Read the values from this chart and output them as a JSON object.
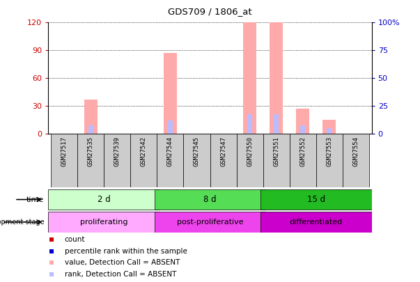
{
  "title": "GDS709 / 1806_at",
  "samples": [
    "GSM27517",
    "GSM27535",
    "GSM27539",
    "GSM27542",
    "GSM27544",
    "GSM27545",
    "GSM27547",
    "GSM27550",
    "GSM27551",
    "GSM27552",
    "GSM27553",
    "GSM27554"
  ],
  "absent_value": [
    0,
    37,
    0,
    0,
    87,
    0,
    0,
    120,
    120,
    27,
    15,
    0
  ],
  "absent_rank_scaled": [
    0,
    9.6,
    0,
    0,
    14.4,
    0,
    0,
    21.6,
    21.6,
    9.6,
    6,
    0
  ],
  "ylim_left": [
    0,
    120
  ],
  "ylim_right": [
    0,
    100
  ],
  "yticks_left": [
    0,
    30,
    60,
    90,
    120
  ],
  "yticks_right": [
    0,
    25,
    50,
    75,
    100
  ],
  "ytick_labels_right": [
    "0",
    "25",
    "50",
    "75",
    "100%"
  ],
  "time_groups": [
    {
      "label": "2 d",
      "start": 0,
      "end": 4
    },
    {
      "label": "8 d",
      "start": 4,
      "end": 8
    },
    {
      "label": "15 d",
      "start": 8,
      "end": 12
    }
  ],
  "time_colors": [
    "#ccffcc",
    "#55dd55",
    "#22bb22"
  ],
  "stage_groups": [
    {
      "label": "proliferating",
      "start": 0,
      "end": 4
    },
    {
      "label": "post-proliferative",
      "start": 4,
      "end": 8
    },
    {
      "label": "differentiated",
      "start": 8,
      "end": 12
    }
  ],
  "stage_colors": [
    "#ffaaff",
    "#ee44ee",
    "#cc00cc"
  ],
  "absent_bar_color": "#ffaaaa",
  "absent_rank_color": "#bbbbff",
  "count_color": "#cc0000",
  "rank_color": "#0000cc",
  "label_color_left": "#cc0000",
  "label_color_right": "#0000cc",
  "xlabel_bg": "#cccccc",
  "n_samples": 12
}
